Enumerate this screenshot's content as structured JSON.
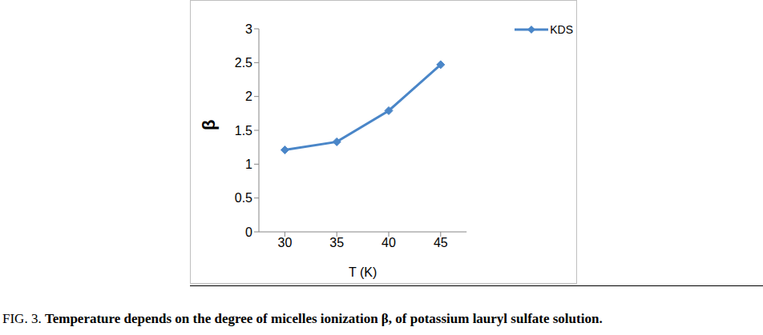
{
  "chart_data": {
    "type": "line",
    "figure_label": "FIG. 3.",
    "title": "Temperature depends on the degree of micelles ionization β, of potassium lauryl sulfate solution.",
    "x_label": "T (K)",
    "y_label": "β",
    "x": [
      30,
      35,
      40,
      45
    ],
    "xlim": [
      27.5,
      47.5
    ],
    "xticks": [
      30,
      35,
      40,
      45
    ],
    "ylim": [
      0,
      3
    ],
    "yticks": [
      0,
      0.5,
      1,
      1.5,
      2,
      2.5,
      3
    ],
    "grid": false,
    "legend": "top-right",
    "series": [
      {
        "name": "KDS",
        "color": "#4a86c8",
        "marker": "diamond",
        "values": [
          1.21,
          1.33,
          1.79,
          2.47
        ]
      }
    ]
  }
}
